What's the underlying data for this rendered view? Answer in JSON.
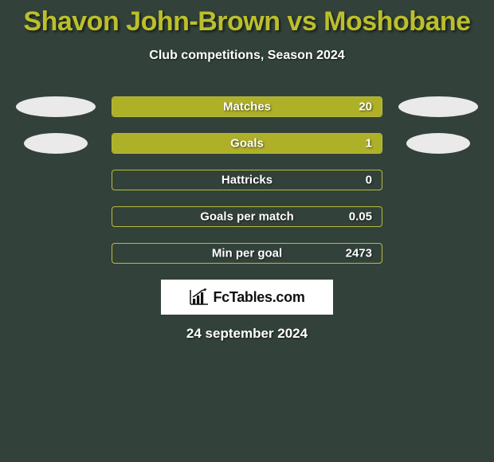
{
  "title": "Shavon John-Brown vs Moshobane",
  "subtitle": "Club competitions, Season 2024",
  "date": "24 september 2024",
  "colors": {
    "background": "#32423a",
    "title_color": "#bcbf2a",
    "text_color": "#ffffff",
    "bar_fill": "#aeb028",
    "bar_border": "#b8bb3c",
    "ellipse_fill": "#eaeaea",
    "logo_bg": "#ffffff",
    "logo_fg": "#111111"
  },
  "typography": {
    "title_fontsize": 34,
    "subtitle_fontsize": 16,
    "bar_label_fontsize": 15,
    "date_fontsize": 17,
    "font_family": "Arial"
  },
  "bars": [
    {
      "label": "Matches",
      "value": "20",
      "fill_pct": 100,
      "show_left_ellipse": true,
      "show_right_ellipse": true,
      "ellipse_narrow": false
    },
    {
      "label": "Goals",
      "value": "1",
      "fill_pct": 100,
      "show_left_ellipse": true,
      "show_right_ellipse": true,
      "ellipse_narrow": true
    },
    {
      "label": "Hattricks",
      "value": "0",
      "fill_pct": 0,
      "show_left_ellipse": false,
      "show_right_ellipse": false,
      "ellipse_narrow": false
    },
    {
      "label": "Goals per match",
      "value": "0.05",
      "fill_pct": 0,
      "show_left_ellipse": false,
      "show_right_ellipse": false,
      "ellipse_narrow": false
    },
    {
      "label": "Min per goal",
      "value": "2473",
      "fill_pct": 0,
      "show_left_ellipse": false,
      "show_right_ellipse": false,
      "ellipse_narrow": false
    }
  ],
  "logo": {
    "text": "FcTables.com",
    "icon": "bar-chart-icon"
  }
}
